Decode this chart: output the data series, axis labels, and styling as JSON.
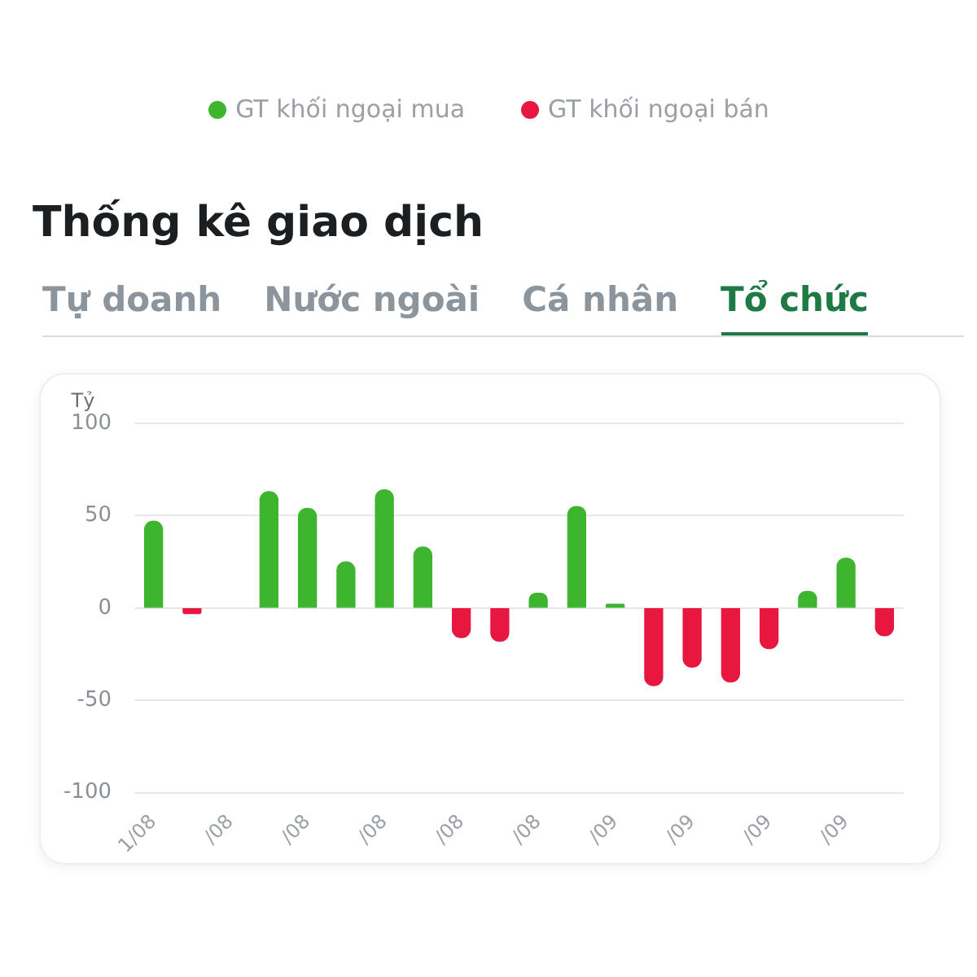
{
  "chart_data": {
    "type": "bar",
    "title": "Thống kê giao dịch",
    "ylabel": "Tỷ",
    "annotations": [
      "GT khối ngoại mua",
      "GT khối ngoại bán",
      "Tự doanh",
      "Nước ngoài",
      "Cá nhân",
      "Tổ chức"
    ],
    "categories": [
      "1/08",
      null,
      "/08",
      null,
      "/08",
      null,
      "/08",
      null,
      "/08",
      null,
      "/08",
      null,
      "/09",
      null,
      "/09",
      null,
      "/09",
      null,
      "/09",
      null
    ],
    "values": [
      47,
      -3,
      null,
      63,
      54,
      25,
      64,
      33,
      -16,
      -18,
      8,
      55,
      2,
      -42,
      -32,
      -40,
      -22,
      9,
      27,
      -15
    ],
    "colors": [
      "#3db52f",
      "#e8173f",
      "#3db52f",
      "#3db52f",
      "#3db52f",
      "#3db52f",
      "#3db52f",
      "#3db52f",
      "#e8173f",
      "#e8173f",
      "#3db52f",
      "#3db52f",
      "#3db52f",
      "#e8173f",
      "#e8173f",
      "#e8173f",
      "#e8173f",
      "#3db52f",
      "#3db52f",
      "#e8173f"
    ],
    "ylim": [
      -100,
      100
    ],
    "yticks": [
      -100,
      -50,
      0,
      50,
      100
    ],
    "grid": "y"
  }
}
